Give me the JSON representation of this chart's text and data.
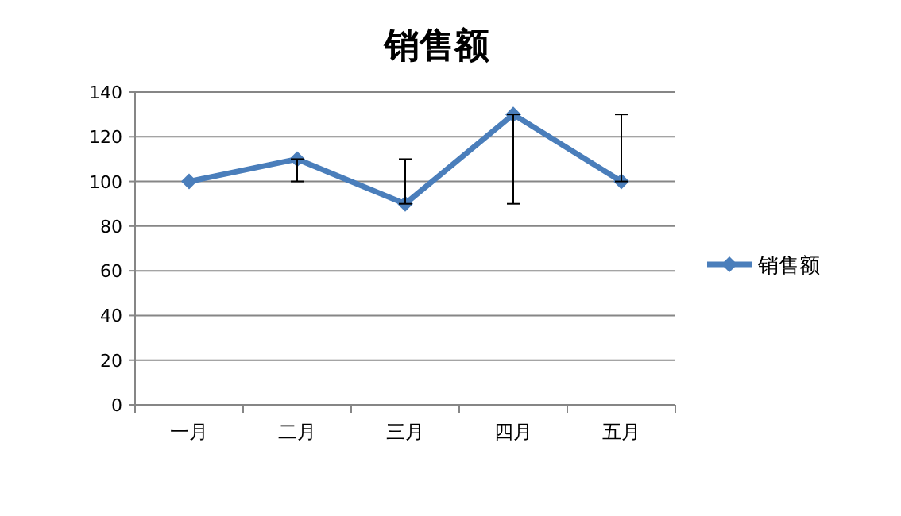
{
  "chart_data": {
    "type": "line",
    "title": "销售额",
    "categories": [
      "一月",
      "二月",
      "三月",
      "四月",
      "五月"
    ],
    "series": [
      {
        "name": "销售额",
        "color": "#4a7ebb",
        "values": [
          100,
          110,
          90,
          130,
          100
        ],
        "errors": [
          null,
          [
            100,
            110
          ],
          [
            90,
            110
          ],
          [
            90,
            130
          ],
          [
            100,
            130
          ]
        ]
      }
    ],
    "ylim": [
      0,
      140
    ],
    "yticks": [
      0,
      20,
      40,
      60,
      80,
      100,
      120,
      140
    ],
    "grid": "y",
    "legend": "right",
    "marker": "diamond",
    "line_style": "solid"
  }
}
